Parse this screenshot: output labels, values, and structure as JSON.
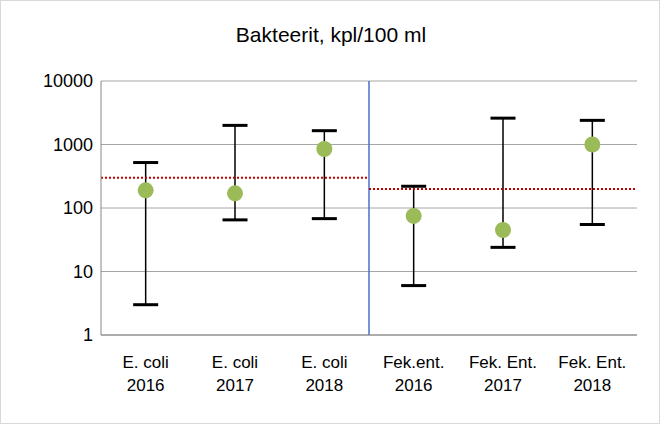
{
  "chart_data": {
    "type": "scatter",
    "title": "Bakteerit, kpl/100 ml",
    "categories": [
      "E. coli 2016",
      "E. coli 2017",
      "E. coli 2018",
      "Fek.ent. 2016",
      "Fek. Ent. 2017",
      "Fek. Ent. 2018"
    ],
    "series": [
      {
        "type": "scatter",
        "color": "#9bbb59",
        "marker": "circle",
        "values": [
          190,
          170,
          850,
          75,
          45,
          1000
        ],
        "low": [
          3,
          65,
          68,
          6,
          24,
          55
        ],
        "high": [
          520,
          2000,
          1650,
          220,
          2600,
          2400
        ]
      },
      {
        "type": "line",
        "color": "#c00000",
        "line_style": "dotted",
        "values": [
          300,
          300,
          300,
          200,
          200,
          200
        ]
      }
    ],
    "ylim": [
      1,
      10000
    ],
    "yticks": [
      1,
      10,
      100,
      1000,
      10000
    ],
    "log": "y",
    "grid": true
  }
}
